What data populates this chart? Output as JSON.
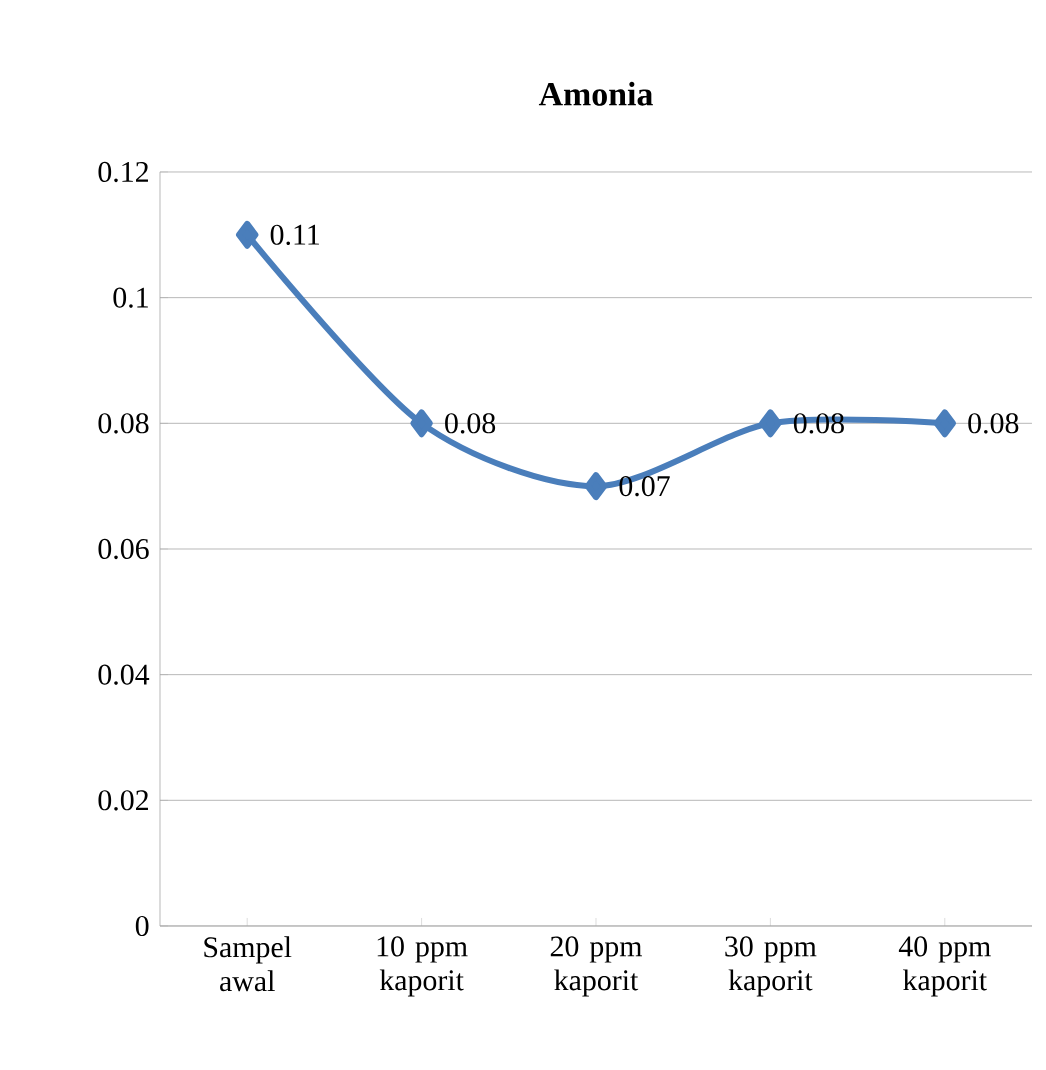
{
  "chart_data": {
    "type": "line",
    "title": "Amonia",
    "categories": [
      "Sampel awal",
      "10 ppm kaporit",
      "20 ppm kaporit",
      "30 ppm kaporit",
      "40 ppm kaporit"
    ],
    "series": [
      {
        "color": "#4a7ebb",
        "values": [
          0.11,
          0.08,
          0.07,
          0.08,
          0.08
        ]
      }
    ],
    "ylim": [
      0,
      0.12
    ],
    "yticks": [
      0,
      0.02,
      0.04,
      0.06,
      0.08,
      0.1,
      0.12
    ],
    "grid": "y",
    "marker": "diamond",
    "line_style": "solid",
    "data_labels": true
  }
}
